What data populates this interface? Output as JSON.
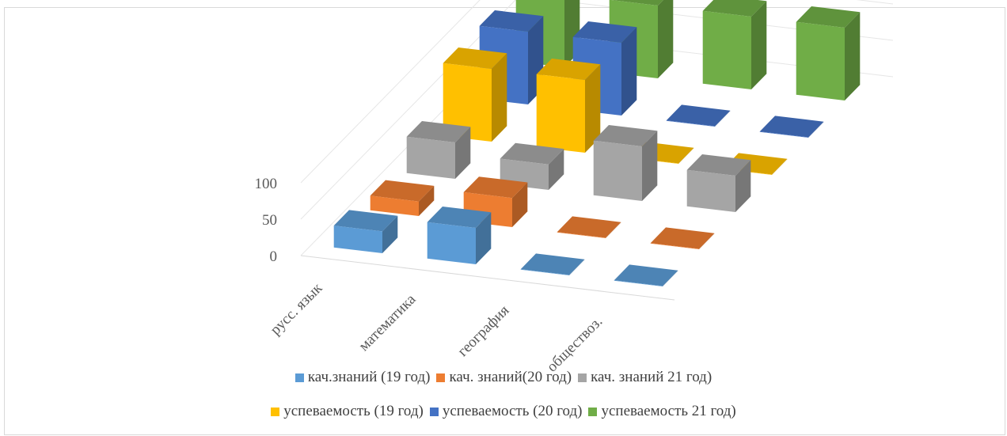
{
  "chart_data": {
    "type": "bar",
    "subtype": "3d-clustered-depth",
    "categories": [
      "русс. язык",
      "математика",
      "география",
      "обществоз."
    ],
    "series": [
      {
        "name": "кач.знаний (19 год)",
        "color": "#5b9bd5",
        "values": [
          30,
          50,
          0,
          0
        ]
      },
      {
        "name": "кач. знаний(20 год)",
        "color": "#ed7d31",
        "values": [
          20,
          40,
          0,
          0
        ]
      },
      {
        "name": "кач. знаний 21 год)",
        "color": "#a5a5a5",
        "values": [
          50,
          35,
          75,
          50
        ]
      },
      {
        "name": "успеваемость (19 год)",
        "color": "#ffc000",
        "values": [
          100,
          100,
          0,
          0
        ]
      },
      {
        "name": "успеваемость (20 год)",
        "color": "#4472c4",
        "values": [
          100,
          100,
          0,
          0
        ]
      },
      {
        "name": "успеваемость 21 год)",
        "color": "#70ad47",
        "values": [
          100,
          100,
          100,
          100
        ]
      }
    ],
    "y_ticks": [
      "0",
      "50",
      "100"
    ],
    "ylim": [
      0,
      100
    ],
    "grid": true,
    "legend_position": "bottom"
  }
}
